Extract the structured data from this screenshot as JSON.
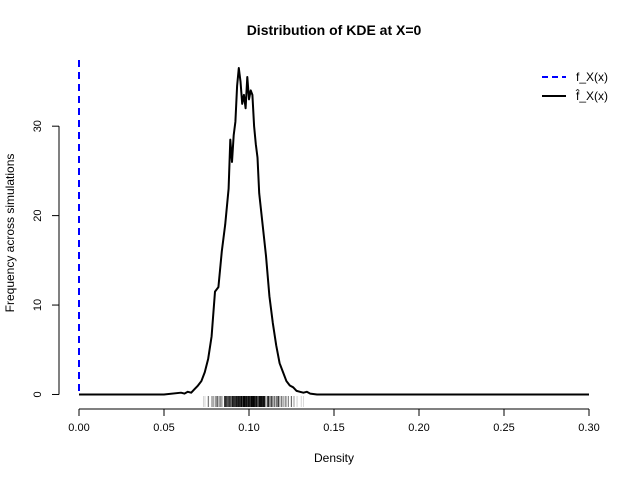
{
  "chart_data": {
    "type": "line",
    "title": "Distribution of KDE at X=0",
    "xlabel": "Density",
    "ylabel": "Frequency across simulations",
    "xlim": [
      0,
      0.3
    ],
    "ylim": [
      -1.4,
      37.4
    ],
    "x_ticks": [
      "0.00",
      "0.05",
      "0.10",
      "0.15",
      "0.20",
      "0.25",
      "0.30"
    ],
    "y_ticks": [
      "0",
      "10",
      "20",
      "30"
    ],
    "grid": false,
    "legend_position": "top-right",
    "legend": [
      {
        "label": "f_X(x)",
        "style": "dashed",
        "color": "#0000ff"
      },
      {
        "label": "f̂_X(x)",
        "style": "solid",
        "color": "#000000"
      }
    ],
    "true_density_x": 0.0,
    "series": [
      {
        "style": "solid",
        "color": "#000000",
        "x": [
          0.0,
          0.05,
          0.06,
          0.062,
          0.064,
          0.066,
          0.068,
          0.07,
          0.072,
          0.074,
          0.076,
          0.078,
          0.08,
          0.082,
          0.084,
          0.086,
          0.088,
          0.089,
          0.09,
          0.091,
          0.092,
          0.093,
          0.094,
          0.095,
          0.096,
          0.097,
          0.098,
          0.099,
          0.1,
          0.101,
          0.102,
          0.103,
          0.104,
          0.105,
          0.106,
          0.108,
          0.11,
          0.112,
          0.114,
          0.116,
          0.118,
          0.12,
          0.122,
          0.124,
          0.126,
          0.128,
          0.13,
          0.132,
          0.134,
          0.136,
          0.14,
          0.15,
          0.3
        ],
        "values": [
          0.0,
          0.0,
          0.2,
          0.1,
          0.3,
          0.2,
          0.6,
          1.0,
          1.5,
          2.5,
          4.0,
          6.5,
          11.5,
          12.0,
          16.0,
          19.0,
          23.0,
          28.5,
          26.0,
          29.0,
          30.5,
          34.5,
          36.5,
          35.0,
          32.5,
          33.5,
          32.0,
          35.5,
          33.0,
          34.0,
          33.5,
          30.0,
          28.0,
          26.5,
          22.5,
          19.0,
          15.5,
          11.0,
          8.0,
          5.5,
          3.5,
          2.5,
          1.5,
          1.0,
          0.8,
          0.4,
          0.3,
          0.2,
          0.3,
          0.1,
          0.0,
          0.0,
          0.0
        ]
      }
    ],
    "rug_range": [
      0.066,
      0.138
    ]
  }
}
